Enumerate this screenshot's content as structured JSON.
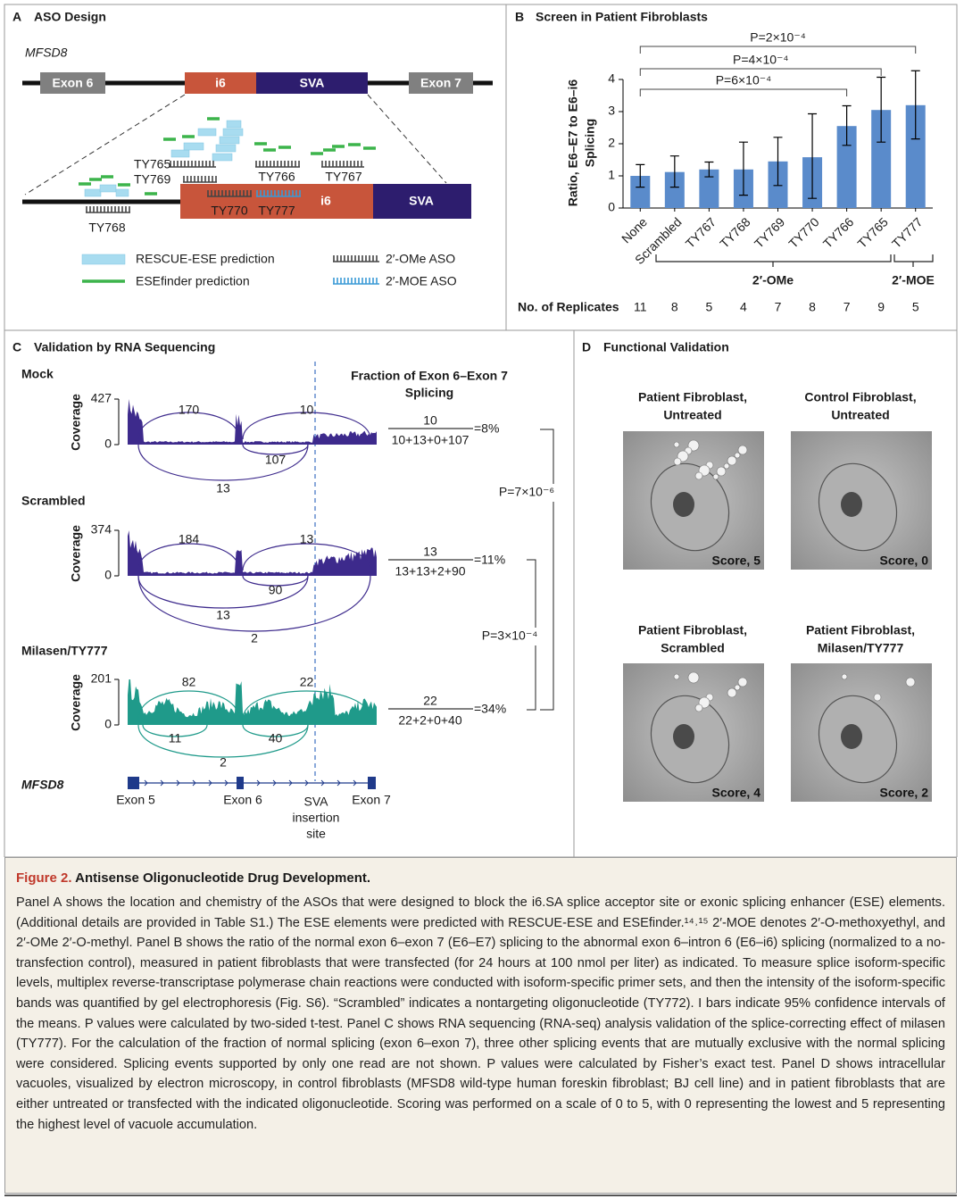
{
  "panel_a": {
    "letter": "A",
    "title": "ASO Design",
    "gene": "MFSD8",
    "exons": [
      "Exon 6",
      "i6",
      "SVA",
      "Exon 7"
    ],
    "zoom": [
      "i6",
      "SVA"
    ],
    "asos": [
      "TY765",
      "TY769",
      "TY766",
      "TY767",
      "TY768",
      "TY770",
      "TY777"
    ],
    "legend": [
      "RESCUE-ESE prediction",
      "ESEfinder prediction",
      "2′-OMe ASO",
      "2′-MOE ASO"
    ]
  },
  "chart_data": {
    "type": "bar",
    "panel": "B",
    "title": "Screen in Patient Fibroblasts",
    "y_label": [
      "Ratio, E6–E7 to E6–i6",
      "Splicing"
    ],
    "categories": [
      "None",
      "Scrambled",
      "TY767",
      "TY768",
      "TY769",
      "TY770",
      "TY766",
      "TY765",
      "TY777"
    ],
    "values": [
      1.0,
      1.12,
      1.2,
      1.2,
      1.45,
      1.58,
      2.55,
      3.05,
      3.2
    ],
    "lower": [
      0.65,
      0.65,
      0.97,
      0.4,
      0.7,
      0.3,
      1.95,
      2.05,
      2.15
    ],
    "upper": [
      1.35,
      1.62,
      1.43,
      2.05,
      2.2,
      2.93,
      3.18,
      4.07,
      4.27
    ],
    "color": "#5a8bcb",
    "ylim": [
      0,
      4
    ],
    "yticks": [
      0,
      1,
      2,
      3,
      4
    ],
    "p_values": [
      "P=6×10⁻⁴",
      "P=4×10⁻⁴",
      "P=2×10⁻⁴"
    ],
    "groups": [
      "2′-OMe",
      "2′-MOE"
    ],
    "replicates_label": "No. of Replicates",
    "replicates": [
      11,
      8,
      5,
      4,
      7,
      8,
      7,
      9,
      5
    ]
  },
  "panel_c": {
    "letter": "C",
    "title": "Validation by RNA Sequencing",
    "coverage_label": "Coverage",
    "fraction_header": [
      "Fraction of Exon 6–Exon 7",
      "Splicing"
    ],
    "tracks": [
      {
        "name": "Mock",
        "ymax": 427,
        "ymin": 0,
        "junctions": [
          170,
          10,
          107,
          13
        ],
        "numerator": 10,
        "denominator": "10+13+0+107",
        "percent": "=8%"
      },
      {
        "name": "Scrambled",
        "ymax": 374,
        "ymin": 0,
        "junctions": [
          184,
          13,
          90,
          13,
          2
        ],
        "numerator": 13,
        "denominator": "13+13+2+90",
        "percent": "=11%"
      },
      {
        "name": "Milasen/TY777",
        "ymax": 201,
        "ymin": 0,
        "junctions": [
          82,
          22,
          11,
          40,
          2
        ],
        "numerator": 22,
        "denominator": "22+2+0+40",
        "percent": "=34%"
      }
    ],
    "p_values": [
      "P=7×10⁻⁶",
      "P=3×10⁻⁴"
    ],
    "gene": "MFSD8",
    "exon_labels": [
      "Exon 5",
      "Exon 6",
      "Exon 7"
    ],
    "site_label": [
      "SVA",
      "insertion",
      "site"
    ]
  },
  "panel_d": {
    "letter": "D",
    "title": "Functional Validation",
    "images": [
      {
        "title": [
          "Patient Fibroblast,",
          "Untreated"
        ],
        "score": "Score, 5"
      },
      {
        "title": [
          "Control Fibroblast,",
          "Untreated"
        ],
        "score": "Score, 0"
      },
      {
        "title": [
          "Patient Fibroblast,",
          "Scrambled"
        ],
        "score": "Score, 4"
      },
      {
        "title": [
          "Patient Fibroblast,",
          "Milasen/TY777"
        ],
        "score": "Score, 2"
      }
    ]
  },
  "caption": {
    "label": "Figure 2.",
    "title": "Antisense Oligonucleotide Drug Development.",
    "text": "Panel A shows the location and chemistry of the ASOs that were designed to block the i6.SA splice acceptor site or exonic splicing enhancer (ESE) elements. (Additional details are provided in Table S1.) The ESE elements were predicted with RESCUE-ESE and ESEfinder.¹⁴˒¹⁵ 2′-MOE denotes 2′-O-methoxyethyl, and 2′-OMe 2′-O-methyl. Panel B shows the ratio of the normal exon 6–exon 7 (E6–E7) splicing to the abnormal exon 6–intron 6 (E6–i6) splicing (normalized to a no-transfection control), measured in patient fibroblasts that were transfected (for 24 hours at 100 nmol per liter) as indicated. To measure splice isoform-specific levels, multiplex reverse-transcriptase polymerase chain reactions were conducted with isoform-specific primer sets, and then the intensity of the isoform-specific bands was quantified by gel electrophoresis (Fig. S6). “Scrambled” indicates a nontargeting oligonucleotide (TY772). I bars indicate 95% confidence intervals of the means. P values were calculated by two-sided t-test. Panel C shows RNA sequencing (RNA-seq) analysis validation of the splice-correcting effect of milasen (TY777). For the calculation of the fraction of normal splicing (exon 6–exon 7), three other splicing events that are mutually exclusive with the normal splicing were considered. Splicing events supported by only one read are not shown. P values were calculated by Fisher’s exact test. Panel D shows intracellular vacuoles, visualized by electron microscopy, in control fibroblasts (MFSD8 wild-type human foreskin fibroblast; BJ cell line) and in patient fibroblasts that are either untreated or transfected with the indicated oligonucleotide. Scoring was performed on a scale of 0 to 5, with 0 representing the lowest and 5 representing the highest level of vacuole accumulation."
  }
}
